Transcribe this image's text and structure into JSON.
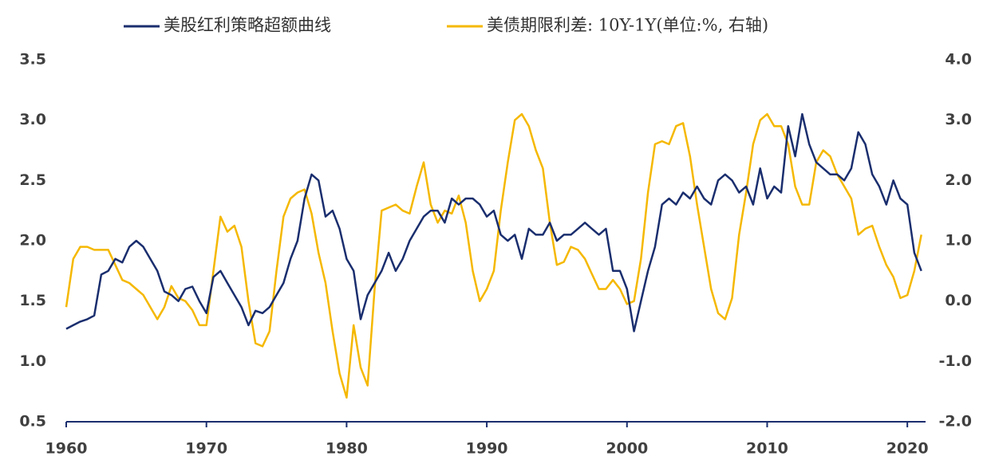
{
  "chart_data": {
    "type": "line",
    "x": [
      1960,
      1960.5,
      1961,
      1961.5,
      1962,
      1962.5,
      1963,
      1963.5,
      1964,
      1964.5,
      1965,
      1965.5,
      1966,
      1966.5,
      1967,
      1967.5,
      1968,
      1968.5,
      1969,
      1969.5,
      1970,
      1970.5,
      1971,
      1971.5,
      1972,
      1972.5,
      1973,
      1973.5,
      1974,
      1974.5,
      1975,
      1975.5,
      1976,
      1976.5,
      1977,
      1977.5,
      1978,
      1978.5,
      1979,
      1979.5,
      1980,
      1980.5,
      1981,
      1981.5,
      1982,
      1982.5,
      1983,
      1983.5,
      1984,
      1984.5,
      1985,
      1985.5,
      1986,
      1986.5,
      1987,
      1987.5,
      1988,
      1988.5,
      1989,
      1989.5,
      1990,
      1990.5,
      1991,
      1991.5,
      1992,
      1992.5,
      1993,
      1993.5,
      1994,
      1994.5,
      1995,
      1995.5,
      1996,
      1996.5,
      1997,
      1997.5,
      1998,
      1998.5,
      1999,
      1999.5,
      2000,
      2000.5,
      2001,
      2001.5,
      2002,
      2002.5,
      2003,
      2003.5,
      2004,
      2004.5,
      2005,
      2005.5,
      2006,
      2006.5,
      2007,
      2007.5,
      2008,
      2008.5,
      2009,
      2009.5,
      2010,
      2010.5,
      2011,
      2011.5,
      2012,
      2012.5,
      2013,
      2013.5,
      2014,
      2014.5,
      2015,
      2015.5,
      2016,
      2016.5,
      2017,
      2017.5,
      2018,
      2018.5,
      2019,
      2019.5,
      2020,
      2020.5,
      2021
    ],
    "series": [
      {
        "name": "美股红利策略超额曲线",
        "color": "#1a2e6e",
        "values": [
          1.27,
          1.3,
          1.33,
          1.35,
          1.38,
          1.72,
          1.75,
          1.85,
          1.82,
          1.95,
          2.0,
          1.95,
          1.85,
          1.75,
          1.58,
          1.55,
          1.5,
          1.6,
          1.62,
          1.5,
          1.4,
          1.7,
          1.75,
          1.65,
          1.55,
          1.45,
          1.3,
          1.42,
          1.4,
          1.45,
          1.55,
          1.65,
          1.85,
          2.0,
          2.35,
          2.55,
          2.5,
          2.2,
          2.25,
          2.1,
          1.85,
          1.75,
          1.35,
          1.55,
          1.65,
          1.75,
          1.9,
          1.75,
          1.85,
          2.0,
          2.1,
          2.2,
          2.25,
          2.25,
          2.15,
          2.35,
          2.3,
          2.35,
          2.35,
          2.3,
          2.2,
          2.25,
          2.05,
          2.0,
          2.05,
          1.85,
          2.1,
          2.05,
          2.05,
          2.15,
          2.0,
          2.05,
          2.05,
          2.1,
          2.15,
          2.1,
          2.05,
          2.1,
          1.75,
          1.75,
          1.6,
          1.25,
          1.5,
          1.75,
          1.95,
          2.3,
          2.35,
          2.3,
          2.4,
          2.35,
          2.45,
          2.35,
          2.3,
          2.5,
          2.55,
          2.5,
          2.4,
          2.45,
          2.3,
          2.6,
          2.35,
          2.45,
          2.4,
          2.95,
          2.7,
          3.05,
          2.8,
          2.65,
          2.6,
          2.55,
          2.55,
          2.5,
          2.6,
          2.9,
          2.8,
          2.55,
          2.45,
          2.3,
          2.5,
          2.35,
          2.3,
          1.9,
          1.75
        ]
      },
      {
        "name": "美债期限利差: 10Y-1Y(单位:%, 右轴)",
        "color": "#f5b800",
        "axis": "y2",
        "values": [
          -0.1,
          0.7,
          0.9,
          0.9,
          0.85,
          0.85,
          0.85,
          0.6,
          0.35,
          0.3,
          0.2,
          0.1,
          -0.1,
          -0.3,
          -0.1,
          0.25,
          0.05,
          0,
          -0.15,
          -0.4,
          -0.4,
          0.5,
          1.4,
          1.15,
          1.25,
          0.9,
          0,
          -0.7,
          -0.75,
          -0.5,
          0.5,
          1.4,
          1.7,
          1.8,
          1.85,
          1.45,
          0.8,
          0.3,
          -0.5,
          -1.2,
          -1.6,
          -0.4,
          -1.1,
          -1.4,
          0.2,
          1.5,
          1.55,
          1.6,
          1.5,
          1.45,
          1.9,
          2.3,
          1.6,
          1.3,
          1.5,
          1.45,
          1.75,
          1.3,
          0.5,
          0,
          0.2,
          0.5,
          1.5,
          2.3,
          3.0,
          3.1,
          2.9,
          2.5,
          2.2,
          1.3,
          0.6,
          0.65,
          0.9,
          0.85,
          0.7,
          0.45,
          0.2,
          0.2,
          0.35,
          0.2,
          -0.05,
          0,
          0.7,
          1.8,
          2.6,
          2.65,
          2.6,
          2.9,
          2.95,
          2.4,
          1.6,
          0.9,
          0.2,
          -0.2,
          -0.3,
          0.05,
          1.1,
          1.8,
          2.6,
          3.0,
          3.1,
          2.9,
          2.9,
          2.6,
          1.9,
          1.6,
          1.6,
          2.3,
          2.5,
          2.4,
          2.1,
          1.9,
          1.7,
          1.1,
          1.2,
          1.25,
          0.9,
          0.6,
          0.4,
          0.05,
          0.1,
          0.5,
          1.1
        ]
      }
    ],
    "xlim": [
      1960,
      2021.3
    ],
    "xticks": [
      1960,
      1970,
      1980,
      1990,
      2000,
      2010,
      2020
    ],
    "ylim": [
      0.5,
      3.5
    ],
    "yticks": [
      0.5,
      {
        "value": 1,
        "label": "1.0"
      },
      1.5,
      {
        "value": 2,
        "label": "2.0"
      },
      2.5,
      {
        "value": 3,
        "label": "3.0"
      },
      3.5
    ],
    "y2lim": [
      -2,
      4
    ],
    "y2ticks": [
      {
        "value": -2,
        "label": "-2.0"
      },
      {
        "value": -1,
        "label": "-1.0"
      },
      {
        "value": 0,
        "label": "0.0"
      },
      {
        "value": 1,
        "label": "1.0"
      },
      {
        "value": 2,
        "label": "2.0"
      },
      {
        "value": 3,
        "label": "3.0"
      },
      {
        "value": 4,
        "label": "4.0"
      }
    ],
    "legend": "top"
  }
}
